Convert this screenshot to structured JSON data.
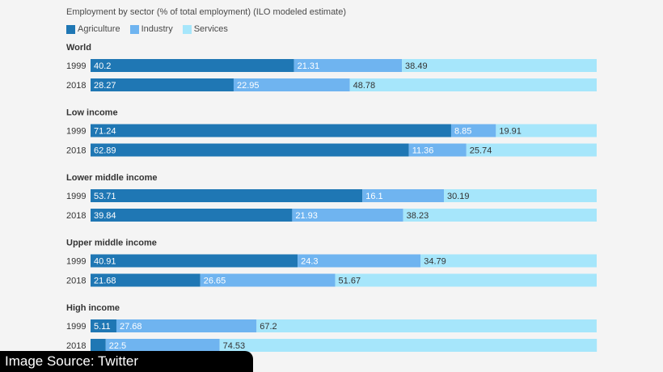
{
  "chart_data": {
    "type": "bar",
    "orientation": "horizontal",
    "stacked": true,
    "title": "Employment by sector (% of total employment) (ILO modeled estimate)",
    "legend_placement": "top-left",
    "grid": false,
    "xlim": [
      0,
      100
    ],
    "series": [
      {
        "name": "Agriculture",
        "color": "#1f77b4"
      },
      {
        "name": "Industry",
        "color": "#6fb4f0"
      },
      {
        "name": "Services",
        "color": "#a6e6fb"
      }
    ],
    "groups": [
      {
        "name": "World",
        "rows": [
          {
            "year": "1999",
            "values": [
              40.2,
              21.31,
              38.49
            ],
            "labels": [
              "40.2",
              "21.31",
              "38.49"
            ]
          },
          {
            "year": "2018",
            "values": [
              28.27,
              22.95,
              48.78
            ],
            "labels": [
              "28.27",
              "22.95",
              "48.78"
            ]
          }
        ]
      },
      {
        "name": "Low income",
        "rows": [
          {
            "year": "1999",
            "values": [
              71.24,
              8.85,
              19.91
            ],
            "labels": [
              "71.24",
              "8.85",
              "19.91"
            ]
          },
          {
            "year": "2018",
            "values": [
              62.89,
              11.36,
              25.74
            ],
            "labels": [
              "62.89",
              "11.36",
              "25.74"
            ]
          }
        ]
      },
      {
        "name": "Lower middle income",
        "rows": [
          {
            "year": "1999",
            "values": [
              53.71,
              16.1,
              30.19
            ],
            "labels": [
              "53.71",
              "16.1",
              "30.19"
            ]
          },
          {
            "year": "2018",
            "values": [
              39.84,
              21.93,
              38.23
            ],
            "labels": [
              "39.84",
              "21.93",
              "38.23"
            ]
          }
        ]
      },
      {
        "name": "Upper middle income",
        "rows": [
          {
            "year": "1999",
            "values": [
              40.91,
              24.3,
              34.79
            ],
            "labels": [
              "40.91",
              "24.3",
              "34.79"
            ]
          },
          {
            "year": "2018",
            "values": [
              21.68,
              26.65,
              51.67
            ],
            "labels": [
              "21.68",
              "26.65",
              "51.67"
            ]
          }
        ]
      },
      {
        "name": "High income",
        "rows": [
          {
            "year": "1999",
            "values": [
              5.11,
              27.68,
              67.2
            ],
            "labels": [
              "5.11",
              "27.68",
              "67.2"
            ]
          },
          {
            "year": "2018",
            "values": [
              3.0,
              22.5,
              74.53
            ],
            "labels": [
              "",
              "22.5",
              "74.53"
            ]
          }
        ]
      }
    ]
  },
  "source_badge": "Image Source: Twitter"
}
